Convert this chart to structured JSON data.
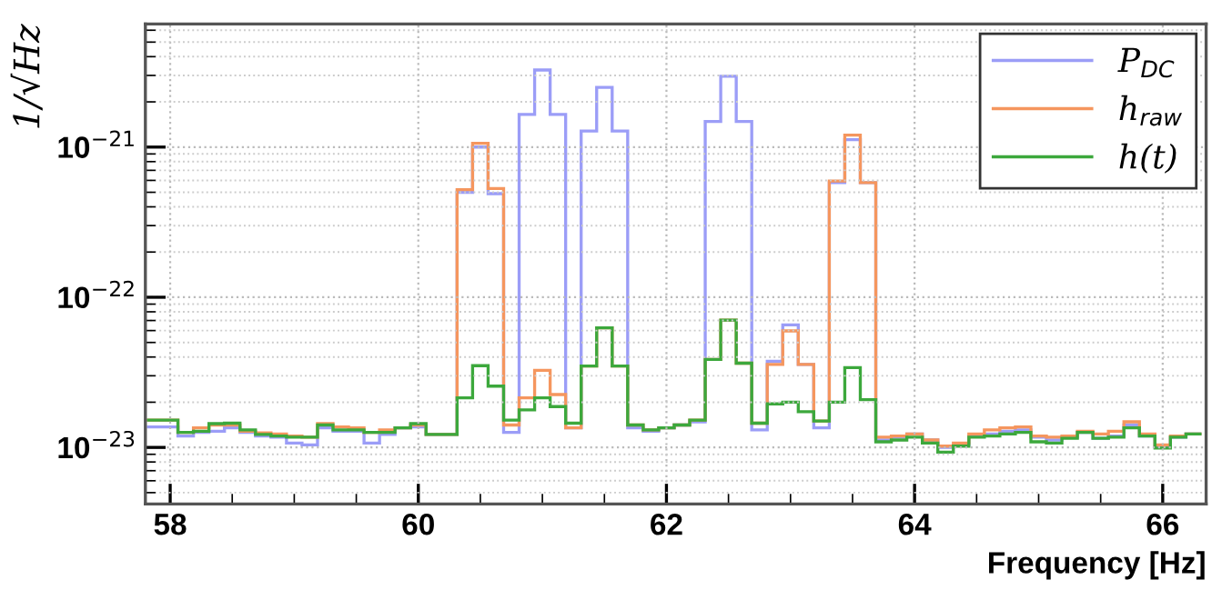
{
  "chart_data": {
    "type": "histogram",
    "xlabel": "Frequency [Hz]",
    "ylabel": "1/√Hz",
    "bins": [
      57.8125,
      57.9375,
      58.0625,
      58.1875,
      58.3125,
      58.4375,
      58.5625,
      58.6875,
      58.8125,
      58.9375,
      59.0625,
      59.1875,
      59.3125,
      59.4375,
      59.5625,
      59.6875,
      59.8125,
      59.9375,
      60.0625,
      60.1875,
      60.3125,
      60.4375,
      60.5625,
      60.6875,
      60.8125,
      60.9375,
      61.0625,
      61.1875,
      61.3125,
      61.4375,
      61.5625,
      61.6875,
      61.8125,
      61.9375,
      62.0625,
      62.1875,
      62.3125,
      62.4375,
      62.5625,
      62.6875,
      62.8125,
      62.9375,
      63.0625,
      63.1875,
      63.3125,
      63.4375,
      63.5625,
      63.6875,
      63.8125,
      63.9375,
      64.0625,
      64.1875,
      64.3125,
      64.4375,
      64.5625,
      64.6875,
      64.8125,
      64.9375,
      65.0625,
      65.1875,
      65.3125,
      65.4375,
      65.5625,
      65.6875,
      65.8125,
      65.9375,
      66.0625,
      66.1875,
      66.3125
    ],
    "series": [
      {
        "name": "P$_{DC}$",
        "color": "#9b9df7",
        "values": [
          1.37e-23,
          1.37e-23,
          1.19e-23,
          1.26e-23,
          1.28e-23,
          1.35e-23,
          1.26e-23,
          1.19e-23,
          1.17e-23,
          1.07e-23,
          1.04e-23,
          1.35e-23,
          1.28e-23,
          1.28e-23,
          1.07e-23,
          1.22e-23,
          1.35e-23,
          1.37e-23,
          1.22e-23,
          1.22e-23,
          5e-22,
          1e-21,
          4.9e-22,
          1.26e-23,
          1.65e-21,
          3.26e-21,
          1.65e-21,
          1.35e-23,
          1.28e-21,
          2.5e-21,
          1.28e-21,
          1.35e-23,
          1.28e-23,
          1.35e-23,
          1.41e-23,
          1.48e-23,
          1.48e-21,
          2.96e-21,
          1.48e-21,
          1.31e-23,
          3.74e-23,
          6.55e-23,
          3.57e-23,
          1.35e-23,
          5.8e-22,
          1.12e-21,
          5.8e-22,
          1.12e-23,
          1.17e-23,
          1.23e-23,
          1.12e-23,
          1e-23,
          1.04e-23,
          1.19e-23,
          1.23e-23,
          1.28e-23,
          1.31e-23,
          1.17e-23,
          1.12e-23,
          1.17e-23,
          1.26e-23,
          1.15e-23,
          1.19e-23,
          1.41e-23,
          1.19e-23,
          1.02e-23,
          1.17e-23,
          1.23e-23
        ]
      },
      {
        "name": "h$_{raw}$",
        "color": "#f5965e",
        "values": [
          1.52e-23,
          1.52e-23,
          1.26e-23,
          1.35e-23,
          1.41e-23,
          1.41e-23,
          1.28e-23,
          1.25e-23,
          1.23e-23,
          1.19e-23,
          1.17e-23,
          1.44e-23,
          1.37e-23,
          1.35e-23,
          1.26e-23,
          1.31e-23,
          1.35e-23,
          1.41e-23,
          1.22e-23,
          1.22e-23,
          5.2e-22,
          1.06e-21,
          5.3e-22,
          1.41e-23,
          2.14e-23,
          3.26e-23,
          2.25e-23,
          1.35e-23,
          3.48e-23,
          6.25e-23,
          3.48e-23,
          1.41e-23,
          1.31e-23,
          1.35e-23,
          1.41e-23,
          1.52e-23,
          3.85e-23,
          7.05e-23,
          3.64e-23,
          1.45e-23,
          3.57e-23,
          5.97e-23,
          3.57e-23,
          1.5e-23,
          5.94e-22,
          1.2e-21,
          5.8e-22,
          1.17e-23,
          1.19e-23,
          1.23e-23,
          1.12e-23,
          1.02e-23,
          1.07e-23,
          1.23e-23,
          1.31e-23,
          1.35e-23,
          1.37e-23,
          1.19e-23,
          1.17e-23,
          1.19e-23,
          1.28e-23,
          1.23e-23,
          1.28e-23,
          1.48e-23,
          1.23e-23,
          1.04e-23,
          1.19e-23,
          1.23e-23
        ]
      },
      {
        "name": "h(t)",
        "color": "#3ca83c",
        "values": [
          1.52e-23,
          1.52e-23,
          1.26e-23,
          1.28e-23,
          1.44e-23,
          1.45e-23,
          1.31e-23,
          1.22e-23,
          1.19e-23,
          1.17e-23,
          1.17e-23,
          1.41e-23,
          1.31e-23,
          1.31e-23,
          1.26e-23,
          1.26e-23,
          1.35e-23,
          1.44e-23,
          1.22e-23,
          1.22e-23,
          2.14e-23,
          3.5e-23,
          2.56e-23,
          1.52e-23,
          1.78e-23,
          2.14e-23,
          1.87e-23,
          1.45e-23,
          3.48e-23,
          6.25e-23,
          3.48e-23,
          1.41e-23,
          1.31e-23,
          1.35e-23,
          1.41e-23,
          1.52e-23,
          3.85e-23,
          7.05e-23,
          3.64e-23,
          1.45e-23,
          1.95e-23,
          2e-23,
          1.73e-23,
          1.5e-23,
          2e-23,
          3.4e-23,
          2.08e-23,
          1.09e-23,
          1.12e-23,
          1.17e-23,
          1.07e-23,
          9.3e-24,
          1.02e-23,
          1.17e-23,
          1.19e-23,
          1.23e-23,
          1.26e-23,
          1.09e-23,
          1.07e-23,
          1.15e-23,
          1.26e-23,
          1.15e-23,
          1.17e-23,
          1.35e-23,
          1.19e-23,
          9.9e-24,
          1.17e-23,
          1.23e-23
        ]
      }
    ],
    "log": "y",
    "xlim": [
      57.8,
      66.35
    ],
    "xticks": [
      58,
      60,
      62,
      64,
      66
    ],
    "ylim": [
      4.2e-24,
      6.6e-21
    ],
    "yticks": [
      {
        "value": 1e-23,
        "label": "10$^{−23}$"
      },
      {
        "value": 1e-22,
        "label": "10$^{−22}$"
      },
      {
        "value": 1e-21,
        "label": "10$^{−21}$"
      }
    ],
    "grid": true,
    "legend": "top right"
  }
}
